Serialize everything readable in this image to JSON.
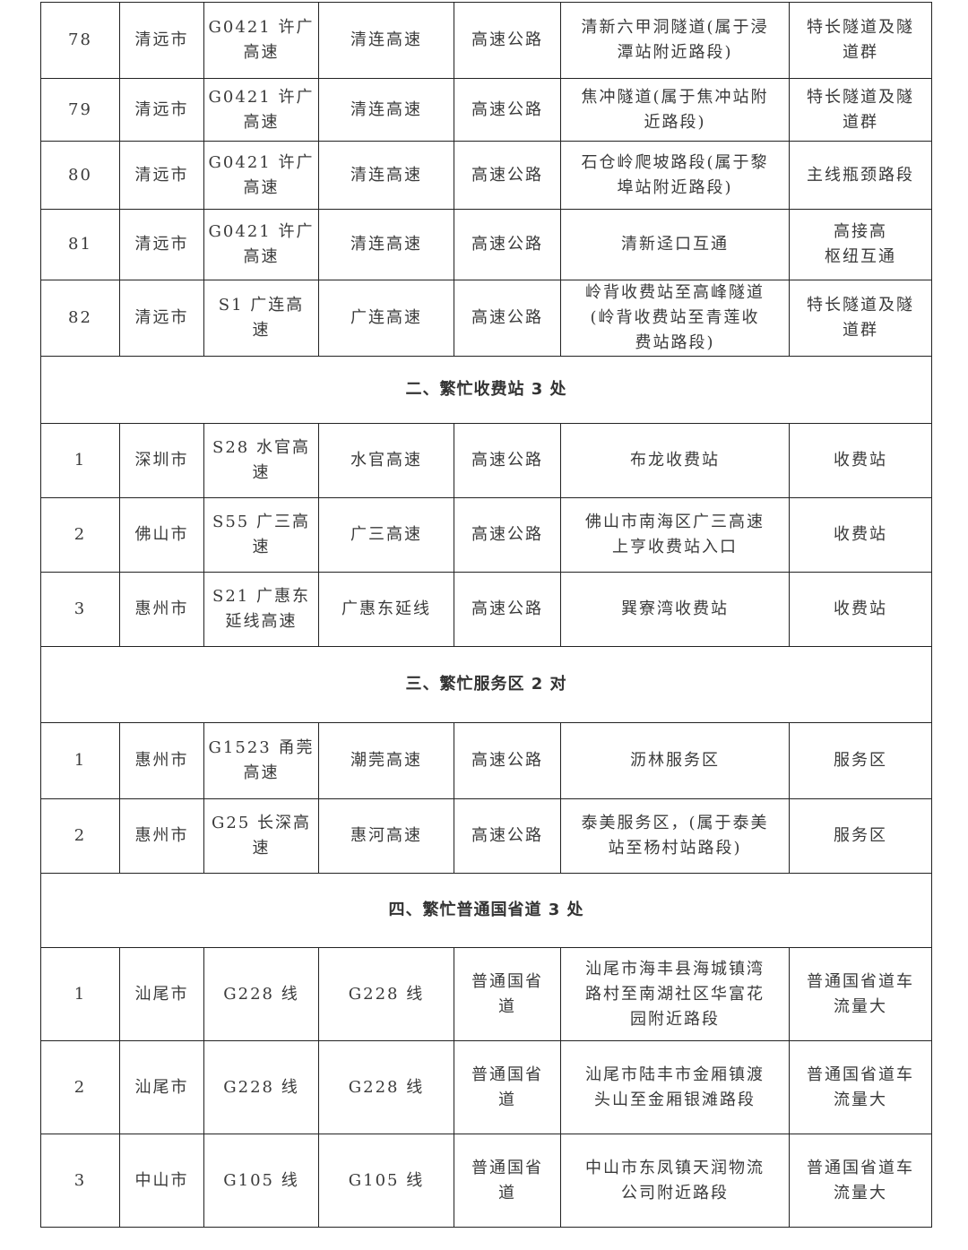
{
  "sections": [
    {
      "title": null,
      "rows": [
        [
          "78",
          "清远市",
          "G0421 许广\n高速",
          "清连高速",
          "高速公路",
          "清新六甲洞隧道(属于浸\n潭站附近路段)",
          "特长隧道及隧\n道群"
        ],
        [
          "79",
          "清远市",
          "G0421 许广\n高速",
          "清连高速",
          "高速公路",
          "焦冲隧道(属于焦冲站附\n近路段)",
          "特长隧道及隧\n道群"
        ],
        [
          "80",
          "清远市",
          "G0421 许广\n高速",
          "清连高速",
          "高速公路",
          "石仓岭爬坡路段(属于黎\n埠站附近路段)",
          "主线瓶颈路段"
        ],
        [
          "81",
          "清远市",
          "G0421 许广\n高速",
          "清连高速",
          "高速公路",
          "清新迳口互通",
          "高接高\n枢纽互通"
        ],
        [
          "82",
          "清远市",
          "S1 广连高\n速",
          "广连高速",
          "高速公路",
          "岭背收费站至高峰隧道\n(岭背收费站至青莲收\n费站路段)",
          "特长隧道及隧\n道群"
        ]
      ]
    },
    {
      "title": "二、繁忙收费站 3 处",
      "rows": [
        [
          "1",
          "深圳市",
          "S28 水官高\n速",
          "水官高速",
          "高速公路",
          "布龙收费站",
          "收费站"
        ],
        [
          "2",
          "佛山市",
          "S55 广三高\n速",
          "广三高速",
          "高速公路",
          "佛山市南海区广三高速\n上亨收费站入口",
          "收费站"
        ],
        [
          "3",
          "惠州市",
          "S21 广惠东\n延线高速",
          "广惠东延线",
          "高速公路",
          "巽寮湾收费站",
          "收费站"
        ]
      ]
    },
    {
      "title": "三、繁忙服务区 2 对",
      "rows": [
        [
          "1",
          "惠州市",
          "G1523 甬莞\n高速",
          "潮莞高速",
          "高速公路",
          "沥林服务区",
          "服务区"
        ],
        [
          "2",
          "惠州市",
          "G25 长深高\n速",
          "惠河高速",
          "高速公路",
          "泰美服务区，(属于泰美\n站至杨村站路段)",
          "服务区"
        ]
      ]
    },
    {
      "title": "四、繁忙普通国省道 3 处",
      "rows": [
        [
          "1",
          "汕尾市",
          "G228 线",
          "G228 线",
          "普通国省\n道",
          "汕尾市海丰县海城镇湾\n路村至南湖社区华富花\n园附近路段",
          "普通国省道车\n流量大"
        ],
        [
          "2",
          "汕尾市",
          "G228 线",
          "G228 线",
          "普通国省\n道",
          "汕尾市陆丰市金厢镇渡\n头山至金厢银滩路段",
          "普通国省道车\n流量大"
        ],
        [
          "3",
          "中山市",
          "G105 线",
          "G105 线",
          "普通国省\n道",
          "中山市东凤镇天润物流\n公司附近路段",
          "普通国省道车\n流量大"
        ]
      ]
    }
  ]
}
